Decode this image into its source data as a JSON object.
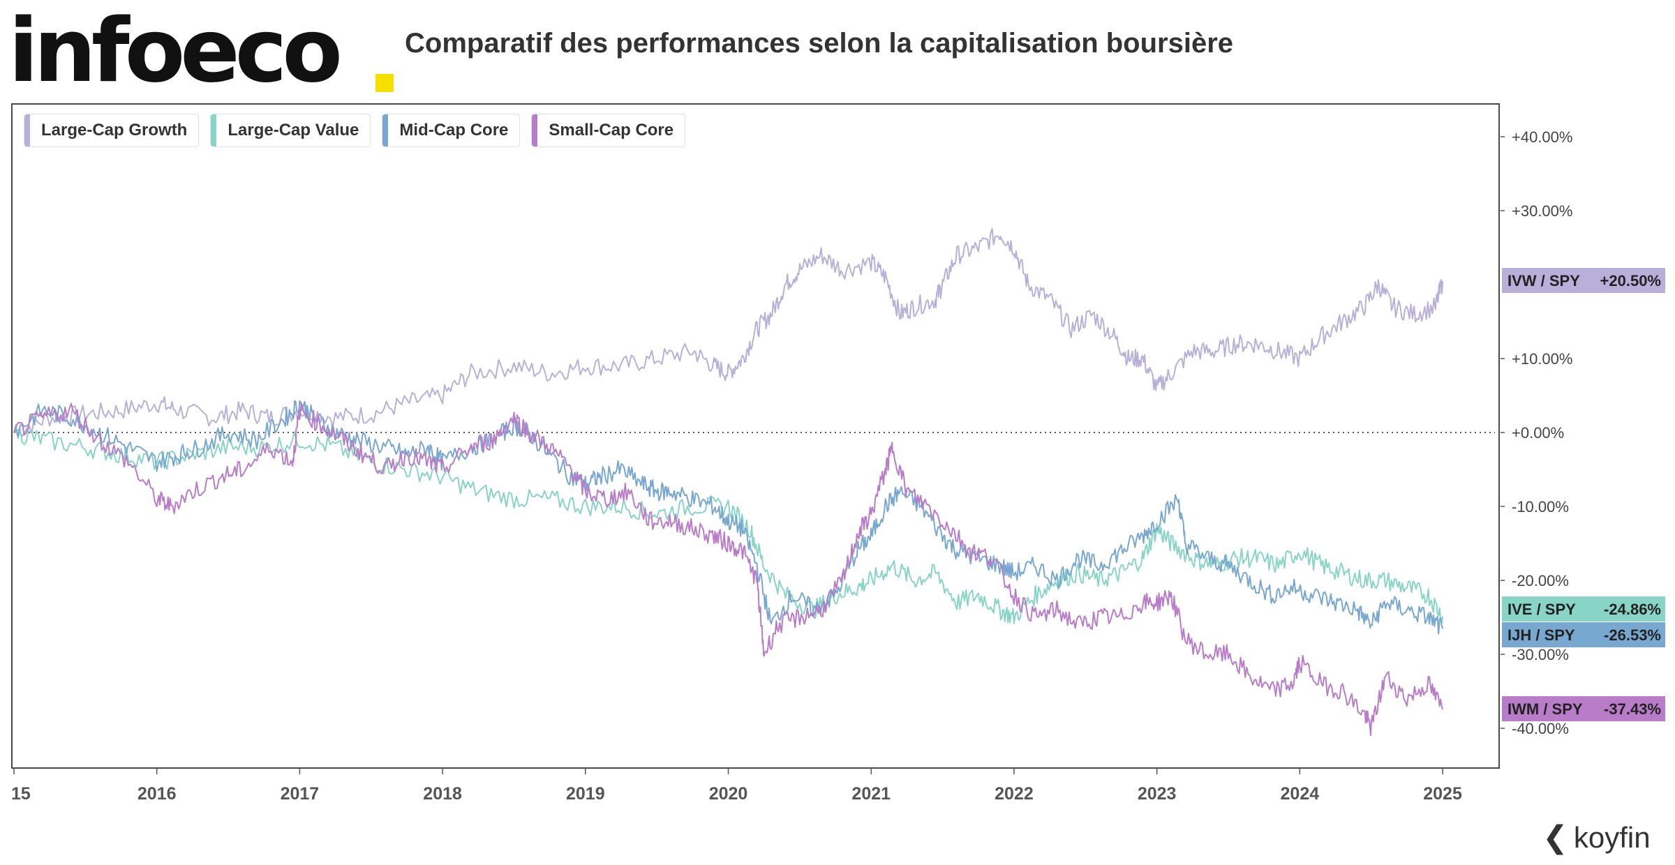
{
  "brand": {
    "logo_text": "infoeco",
    "logo_dot_color": "#f5e000"
  },
  "title": "Comparatif des performances selon la capitalisation boursière",
  "footer": {
    "brand": "koyfin"
  },
  "chart_data": {
    "type": "line",
    "x_ticks": [
      "15",
      "2016",
      "2017",
      "2018",
      "2019",
      "2020",
      "2021",
      "2022",
      "2023",
      "2024",
      "2025"
    ],
    "y_ticks": [
      "+40.00%",
      "+30.00%",
      "+10.00%",
      "+0.00%",
      "-10.00%",
      "-20.00%",
      "-30.00%",
      "-40.00%"
    ],
    "y_tick_values": [
      40,
      30,
      10,
      0,
      -10,
      -20,
      -30,
      -40
    ],
    "ylim": [
      -46,
      44
    ],
    "xlim": [
      2015.0,
      2025.2
    ],
    "zero_line": "dotted",
    "legend_position": "top-left",
    "series": [
      {
        "name": "Large-Cap Growth",
        "color": "#b8b0d8",
        "tag": "IVW / SPY",
        "value_label": "+20.50%",
        "last": 20.5,
        "points": [
          [
            2015.0,
            0
          ],
          [
            2015.25,
            2
          ],
          [
            2015.5,
            2.5
          ],
          [
            2015.75,
            3
          ],
          [
            2016.0,
            4
          ],
          [
            2016.15,
            3
          ],
          [
            2016.4,
            2
          ],
          [
            2016.6,
            3
          ],
          [
            2016.8,
            2
          ],
          [
            2017.0,
            3
          ],
          [
            2017.25,
            2
          ],
          [
            2017.5,
            2.5
          ],
          [
            2017.75,
            4
          ],
          [
            2018.0,
            5
          ],
          [
            2018.2,
            8
          ],
          [
            2018.5,
            9
          ],
          [
            2018.75,
            8
          ],
          [
            2019.0,
            9
          ],
          [
            2019.25,
            9
          ],
          [
            2019.5,
            10
          ],
          [
            2019.75,
            11
          ],
          [
            2019.9,
            9
          ],
          [
            2020.0,
            8
          ],
          [
            2020.1,
            10
          ],
          [
            2020.2,
            14
          ],
          [
            2020.3,
            16
          ],
          [
            2020.4,
            20
          ],
          [
            2020.5,
            22
          ],
          [
            2020.65,
            24
          ],
          [
            2020.8,
            22
          ],
          [
            2021.0,
            23
          ],
          [
            2021.1,
            21
          ],
          [
            2021.2,
            16
          ],
          [
            2021.3,
            17
          ],
          [
            2021.45,
            18
          ],
          [
            2021.5,
            20
          ],
          [
            2021.6,
            24
          ],
          [
            2021.75,
            25
          ],
          [
            2021.9,
            27
          ],
          [
            2022.0,
            25
          ],
          [
            2022.1,
            20
          ],
          [
            2022.25,
            18
          ],
          [
            2022.4,
            14
          ],
          [
            2022.55,
            16
          ],
          [
            2022.7,
            13
          ],
          [
            2022.8,
            10
          ],
          [
            2022.9,
            10
          ],
          [
            2023.0,
            6
          ],
          [
            2023.1,
            8
          ],
          [
            2023.25,
            11
          ],
          [
            2023.4,
            11
          ],
          [
            2023.55,
            12
          ],
          [
            2023.7,
            12
          ],
          [
            2023.85,
            11
          ],
          [
            2024.0,
            10
          ],
          [
            2024.15,
            13
          ],
          [
            2024.3,
            15
          ],
          [
            2024.45,
            17
          ],
          [
            2024.55,
            20
          ],
          [
            2024.65,
            17
          ],
          [
            2024.8,
            16
          ],
          [
            2024.95,
            17
          ],
          [
            2025.0,
            20.5
          ]
        ]
      },
      {
        "name": "Large-Cap Value",
        "color": "#88d4c6",
        "tag": "IVE / SPY",
        "value_label": "-24.86%",
        "last": -24.86,
        "points": [
          [
            2015.0,
            0
          ],
          [
            2015.2,
            -1
          ],
          [
            2015.5,
            -2
          ],
          [
            2015.75,
            -3
          ],
          [
            2016.0,
            -4
          ],
          [
            2016.25,
            -3
          ],
          [
            2016.5,
            -2
          ],
          [
            2016.75,
            -2
          ],
          [
            2017.0,
            -1
          ],
          [
            2017.25,
            -2
          ],
          [
            2017.5,
            -4
          ],
          [
            2017.75,
            -5
          ],
          [
            2018.0,
            -6
          ],
          [
            2018.25,
            -8
          ],
          [
            2018.5,
            -9
          ],
          [
            2018.75,
            -9
          ],
          [
            2019.0,
            -10
          ],
          [
            2019.25,
            -10
          ],
          [
            2019.5,
            -11
          ],
          [
            2019.75,
            -10
          ],
          [
            2020.0,
            -10
          ],
          [
            2020.15,
            -13
          ],
          [
            2020.25,
            -18
          ],
          [
            2020.4,
            -22
          ],
          [
            2020.6,
            -24
          ],
          [
            2020.75,
            -22
          ],
          [
            2020.9,
            -21
          ],
          [
            2021.0,
            -20
          ],
          [
            2021.15,
            -18
          ],
          [
            2021.3,
            -20
          ],
          [
            2021.45,
            -19
          ],
          [
            2021.6,
            -23
          ],
          [
            2021.75,
            -22
          ],
          [
            2021.9,
            -24
          ],
          [
            2022.0,
            -25
          ],
          [
            2022.15,
            -22
          ],
          [
            2022.3,
            -20
          ],
          [
            2022.45,
            -19
          ],
          [
            2022.6,
            -20
          ],
          [
            2022.75,
            -19
          ],
          [
            2022.9,
            -17
          ],
          [
            2023.0,
            -13
          ],
          [
            2023.1,
            -15
          ],
          [
            2023.25,
            -17
          ],
          [
            2023.4,
            -18
          ],
          [
            2023.55,
            -17
          ],
          [
            2023.7,
            -17
          ],
          [
            2023.85,
            -18
          ],
          [
            2024.0,
            -16
          ],
          [
            2024.15,
            -18
          ],
          [
            2024.3,
            -19
          ],
          [
            2024.45,
            -20
          ],
          [
            2024.6,
            -20
          ],
          [
            2024.75,
            -21
          ],
          [
            2024.9,
            -22
          ],
          [
            2025.0,
            -24.86
          ]
        ]
      },
      {
        "name": "Mid-Cap Core",
        "color": "#78a8d0",
        "tag": "IJH / SPY",
        "value_label": "-26.53%",
        "last": -26.53,
        "points": [
          [
            2015.0,
            0
          ],
          [
            2015.2,
            3
          ],
          [
            2015.4,
            2
          ],
          [
            2015.6,
            0
          ],
          [
            2015.8,
            -2
          ],
          [
            2016.0,
            -4
          ],
          [
            2016.15,
            -3
          ],
          [
            2016.3,
            -2
          ],
          [
            2016.5,
            0
          ],
          [
            2016.7,
            -1
          ],
          [
            2016.9,
            2
          ],
          [
            2017.0,
            4
          ],
          [
            2017.1,
            2
          ],
          [
            2017.25,
            0
          ],
          [
            2017.4,
            -1
          ],
          [
            2017.6,
            -2
          ],
          [
            2017.75,
            -3
          ],
          [
            2017.9,
            -2
          ],
          [
            2018.0,
            -4
          ],
          [
            2018.2,
            -2
          ],
          [
            2018.35,
            -1
          ],
          [
            2018.5,
            1
          ],
          [
            2018.6,
            0
          ],
          [
            2018.75,
            -3
          ],
          [
            2018.9,
            -6
          ],
          [
            2019.0,
            -7
          ],
          [
            2019.1,
            -6
          ],
          [
            2019.25,
            -5
          ],
          [
            2019.4,
            -7
          ],
          [
            2019.5,
            -8
          ],
          [
            2019.6,
            -8
          ],
          [
            2019.75,
            -9
          ],
          [
            2019.9,
            -10
          ],
          [
            2020.0,
            -12
          ],
          [
            2020.1,
            -13
          ],
          [
            2020.2,
            -18
          ],
          [
            2020.3,
            -26
          ],
          [
            2020.45,
            -22
          ],
          [
            2020.6,
            -24
          ],
          [
            2020.75,
            -22
          ],
          [
            2020.9,
            -16
          ],
          [
            2021.0,
            -14
          ],
          [
            2021.1,
            -10
          ],
          [
            2021.2,
            -8
          ],
          [
            2021.35,
            -10
          ],
          [
            2021.5,
            -14
          ],
          [
            2021.6,
            -16
          ],
          [
            2021.75,
            -17
          ],
          [
            2021.9,
            -18
          ],
          [
            2022.0,
            -19
          ],
          [
            2022.15,
            -18
          ],
          [
            2022.3,
            -20
          ],
          [
            2022.45,
            -17
          ],
          [
            2022.6,
            -18
          ],
          [
            2022.75,
            -16
          ],
          [
            2022.9,
            -14
          ],
          [
            2023.0,
            -12
          ],
          [
            2023.15,
            -9
          ],
          [
            2023.2,
            -15
          ],
          [
            2023.35,
            -17
          ],
          [
            2023.5,
            -18
          ],
          [
            2023.65,
            -20
          ],
          [
            2023.8,
            -22
          ],
          [
            2023.95,
            -21
          ],
          [
            2024.1,
            -22
          ],
          [
            2024.25,
            -23
          ],
          [
            2024.4,
            -24
          ],
          [
            2024.5,
            -26
          ],
          [
            2024.6,
            -23
          ],
          [
            2024.75,
            -24
          ],
          [
            2024.9,
            -25
          ],
          [
            2025.0,
            -26.53
          ]
        ]
      },
      {
        "name": "Small-Cap Core",
        "color": "#b87cc8",
        "tag": "IWM / SPY",
        "value_label": "-37.43%",
        "last": -37.43,
        "points": [
          [
            2015.0,
            0
          ],
          [
            2015.2,
            2
          ],
          [
            2015.4,
            3
          ],
          [
            2015.6,
            -1
          ],
          [
            2015.8,
            -4
          ],
          [
            2016.0,
            -9
          ],
          [
            2016.1,
            -10
          ],
          [
            2016.25,
            -8
          ],
          [
            2016.45,
            -6
          ],
          [
            2016.6,
            -5
          ],
          [
            2016.8,
            -2
          ],
          [
            2016.95,
            -4
          ],
          [
            2017.0,
            3
          ],
          [
            2017.15,
            1
          ],
          [
            2017.3,
            -1
          ],
          [
            2017.45,
            -3
          ],
          [
            2017.6,
            -5
          ],
          [
            2017.75,
            -3
          ],
          [
            2017.9,
            -4
          ],
          [
            2018.0,
            -5
          ],
          [
            2018.2,
            -2
          ],
          [
            2018.35,
            -1
          ],
          [
            2018.5,
            2
          ],
          [
            2018.6,
            0
          ],
          [
            2018.75,
            -2
          ],
          [
            2018.9,
            -5
          ],
          [
            2019.0,
            -8
          ],
          [
            2019.15,
            -9
          ],
          [
            2019.3,
            -8
          ],
          [
            2019.45,
            -12
          ],
          [
            2019.6,
            -12
          ],
          [
            2019.75,
            -13
          ],
          [
            2019.9,
            -14
          ],
          [
            2020.0,
            -15
          ],
          [
            2020.1,
            -16
          ],
          [
            2020.2,
            -20
          ],
          [
            2020.25,
            -30
          ],
          [
            2020.35,
            -26
          ],
          [
            2020.5,
            -25
          ],
          [
            2020.65,
            -24
          ],
          [
            2020.8,
            -20
          ],
          [
            2020.9,
            -14
          ],
          [
            2021.0,
            -11
          ],
          [
            2021.1,
            -5
          ],
          [
            2021.15,
            -2
          ],
          [
            2021.25,
            -8
          ],
          [
            2021.4,
            -10
          ],
          [
            2021.55,
            -13
          ],
          [
            2021.7,
            -16
          ],
          [
            2021.85,
            -17
          ],
          [
            2022.0,
            -22
          ],
          [
            2022.15,
            -25
          ],
          [
            2022.3,
            -24
          ],
          [
            2022.45,
            -26
          ],
          [
            2022.6,
            -25
          ],
          [
            2022.75,
            -25
          ],
          [
            2022.9,
            -23
          ],
          [
            2023.0,
            -23
          ],
          [
            2023.1,
            -22
          ],
          [
            2023.2,
            -28
          ],
          [
            2023.35,
            -30
          ],
          [
            2023.5,
            -30
          ],
          [
            2023.65,
            -33
          ],
          [
            2023.8,
            -35
          ],
          [
            2023.95,
            -34
          ],
          [
            2024.0,
            -31
          ],
          [
            2024.15,
            -34
          ],
          [
            2024.3,
            -35
          ],
          [
            2024.45,
            -38
          ],
          [
            2024.5,
            -40
          ],
          [
            2024.6,
            -33
          ],
          [
            2024.75,
            -36
          ],
          [
            2024.9,
            -34
          ],
          [
            2025.0,
            -37.43
          ]
        ]
      }
    ]
  }
}
